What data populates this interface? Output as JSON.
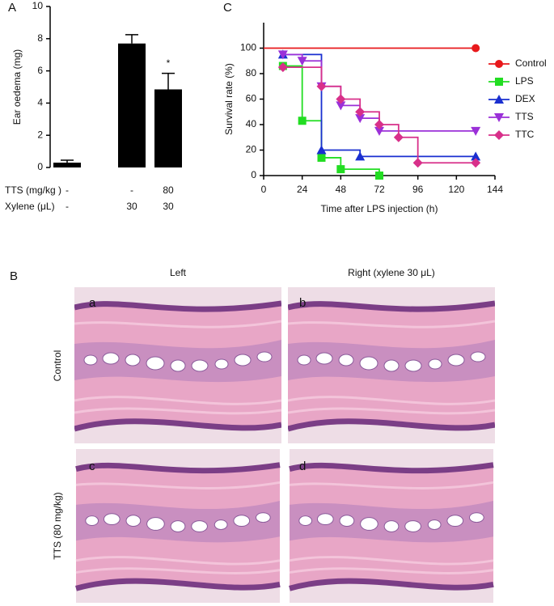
{
  "chart_data": [
    {
      "type": "bar",
      "panel": "A",
      "ylabel": "Ear oedema (mg)",
      "values": [
        0.3,
        7.7,
        4.85
      ],
      "errors": [
        0.15,
        0.55,
        1.0
      ],
      "significance": [
        null,
        null,
        "*"
      ],
      "color": "#000000",
      "rows": [
        {
          "label": "TTS (mg/kg )",
          "values": [
            "-",
            "-",
            "80"
          ]
        },
        {
          "label": "Xylene (μL)",
          "values": [
            "-",
            "30",
            "30"
          ]
        }
      ],
      "ylim": [
        0,
        10
      ],
      "yticks": [
        0,
        2,
        4,
        6,
        8,
        10
      ]
    },
    {
      "type": "line",
      "step": true,
      "panel": "C",
      "xlabel": "Time after LPS injection (h)",
      "ylabel": "Survival rate (%)",
      "xlim": [
        0,
        144
      ],
      "xticks": [
        0,
        24,
        48,
        72,
        96,
        120,
        144
      ],
      "ylim": [
        0,
        120
      ],
      "yticks": [
        0,
        20,
        40,
        60,
        80,
        100
      ],
      "legend": "right",
      "series": [
        {
          "name": "Control",
          "color": "#e8191c",
          "marker": "circle",
          "x": [
            0,
            132
          ],
          "values": [
            100,
            100
          ]
        },
        {
          "name": "LPS",
          "color": "#22dd22",
          "marker": "square",
          "x": [
            12,
            24,
            36,
            48,
            72
          ],
          "values": [
            86,
            43,
            14,
            5,
            0
          ]
        },
        {
          "name": "DEX",
          "color": "#1a2fd0",
          "marker": "triangle",
          "x": [
            12,
            36,
            60,
            132
          ],
          "values": [
            95,
            20,
            15,
            15
          ]
        },
        {
          "name": "TTS",
          "color": "#9b30d8",
          "marker": "triangle-down",
          "x": [
            12,
            24,
            36,
            48,
            60,
            72,
            132
          ],
          "values": [
            95,
            90,
            70,
            55,
            45,
            35,
            35
          ]
        },
        {
          "name": "TTC",
          "color": "#d8308a",
          "marker": "diamond",
          "x": [
            12,
            36,
            48,
            60,
            72,
            84,
            96,
            132
          ],
          "values": [
            85,
            70,
            60,
            50,
            40,
            30,
            10,
            10
          ]
        }
      ]
    }
  ],
  "panel_b": {
    "label": "B",
    "columns": [
      "Left",
      "Right (xylene 30 μL)"
    ],
    "rows": [
      "Control",
      "TTS (80 mg/kg)"
    ],
    "images": [
      "a",
      "b",
      "c",
      "d"
    ]
  }
}
